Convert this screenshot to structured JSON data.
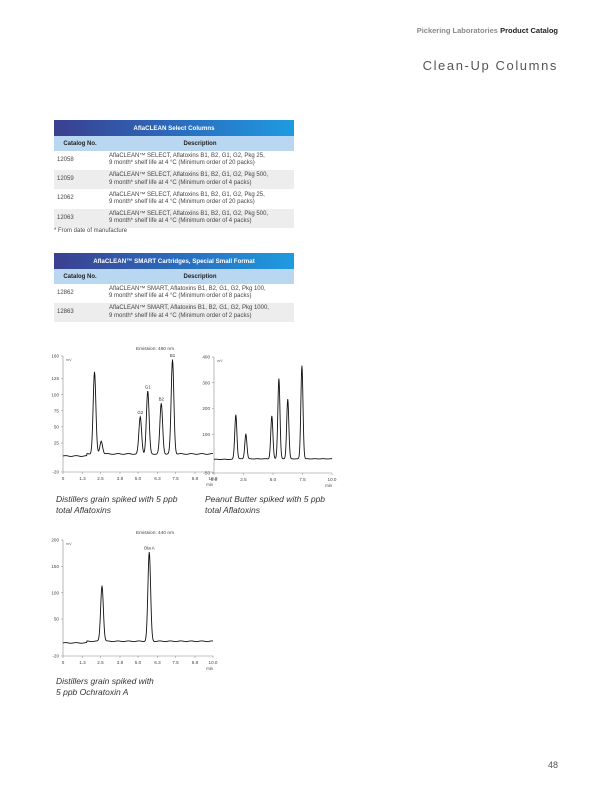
{
  "header": {
    "brand": "Pickering Laboratories",
    "catalog": "Product Catalog"
  },
  "page_title": "Clean-Up Columns",
  "table1": {
    "banner": "AflaCLEAN Select Columns",
    "col_catalog": "Catalog No.",
    "col_description": "Description",
    "rows": [
      {
        "no": "12058",
        "line1": "AflaCLEAN™ SELECT, Aflatoxins B1, B2, G1, G2, Pkg 25,",
        "line2": "9 month* shelf life at 4 °C (Minimum order of 20 packs)"
      },
      {
        "no": "12059",
        "line1": "AflaCLEAN™ SELECT, Aflatoxins B1, B2, G1, G2, Pkg 500,",
        "line2": "9 month* shelf life at 4 °C (Minimum order of 4 packs)"
      },
      {
        "no": "12062",
        "line1": "AflaCLEAN™ SELECT, Aflatoxins B1, B2, G1, G2, Pkg 25,",
        "line2": "9 month* shelf life at 4 °C (Minimum order of 20 packs)"
      },
      {
        "no": "12063",
        "line1": "AflaCLEAN™ SELECT, Aflatoxins B1, B2, G1, G2, Pkg 500,",
        "line2": "9 month* shelf life at 4 °C (Minimum order of 4 packs)"
      }
    ]
  },
  "footnote": "* From date of manufacture",
  "table2": {
    "banner": "AflaCLEAN™ SMART Cartridges, Special Small Format",
    "col_catalog": "Catalog No.",
    "col_description": "Description",
    "rows": [
      {
        "no": "12862",
        "line1": "AflaCLEAN™ SMART, Aflatoxins B1, B2, G1, G2, Pkg 100,",
        "line2": "9 month* shelf life at 4 °C (Minimum order of 8 packs)"
      },
      {
        "no": "12863",
        "line1": "AflaCLEAN™ SMART, Aflatoxins B1, B2, G1, G2, Pkg 1000,",
        "line2": "9 month* shelf life at 4 °C (Minimum order of 2 packs)"
      }
    ]
  },
  "captions": {
    "chart1": [
      "Distillers grain spiked with 5 ppb",
      "total Aflatoxins"
    ],
    "chart2": [
      "Peanut Butter spiked with 5 ppb",
      "total Aflatoxins"
    ],
    "chart3": [
      "Distillers grain spiked with",
      "5 ppb Ochratoxin A"
    ]
  },
  "page_number": "48",
  "chart_data": [
    {
      "type": "line",
      "title": "Emission: 460 nm",
      "ylabel": "mV",
      "xlabel": "min",
      "xlim": [
        0,
        10
      ],
      "ylim": [
        -20,
        160
      ],
      "xticks": [
        "0",
        "1.3",
        "2.5",
        "3.8",
        "5.0",
        "6.3",
        "7.5",
        "8.8",
        "10.0"
      ],
      "yticks": [
        "160",
        "125",
        "100",
        "75",
        "50",
        "25",
        "-20"
      ],
      "baseline": 8,
      "peaks": [
        {
          "label": "",
          "x": 2.1,
          "height": 127
        },
        {
          "label": "",
          "x": 2.55,
          "height": 20
        },
        {
          "label": "G2",
          "x": 5.15,
          "height": 57
        },
        {
          "label": "G1",
          "x": 5.65,
          "height": 97
        },
        {
          "label": "B2",
          "x": 6.55,
          "height": 78
        },
        {
          "label": "B1",
          "x": 7.3,
          "height": 146
        }
      ]
    },
    {
      "type": "line",
      "title": "",
      "ylabel": "mV",
      "xlabel": "min",
      "xlim": [
        0,
        10
      ],
      "ylim": [
        -50,
        400
      ],
      "xticks": [
        "0.0",
        "2.5",
        "5.0",
        "7.5",
        "10.0"
      ],
      "yticks": [
        "400",
        "300",
        "200",
        "100",
        "-50"
      ],
      "baseline": 5,
      "peaks": [
        {
          "label": "",
          "x": 1.85,
          "height": 170
        },
        {
          "label": "",
          "x": 2.7,
          "height": 95
        },
        {
          "label": "",
          "x": 4.9,
          "height": 165
        },
        {
          "label": "",
          "x": 5.5,
          "height": 310
        },
        {
          "label": "",
          "x": 6.25,
          "height": 230
        },
        {
          "label": "",
          "x": 7.45,
          "height": 360
        }
      ]
    },
    {
      "type": "line",
      "title": "Emission: 440 nm",
      "ylabel": "mV",
      "xlabel": "min",
      "xlim": [
        0,
        10
      ],
      "ylim": [
        -20,
        200
      ],
      "xticks": [
        "0",
        "1.3",
        "2.5",
        "3.8",
        "5.0",
        "6.3",
        "7.5",
        "8.8",
        "10.0"
      ],
      "yticks": [
        "200",
        "150",
        "100",
        "50",
        "-20"
      ],
      "baseline": 8,
      "peaks": [
        {
          "label": "",
          "x": 2.6,
          "height": 105
        },
        {
          "label": "Ota A",
          "x": 5.75,
          "height": 168
        }
      ]
    }
  ]
}
